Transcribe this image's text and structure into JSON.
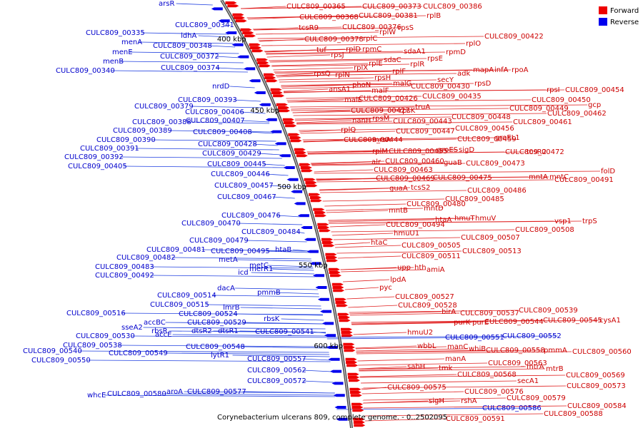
{
  "caption": "Corynebacterium ulcerans 809, complete genome. - 0..2502095",
  "legend": [
    {
      "label": "Forward",
      "color": "#ee0000"
    },
    {
      "label": "Reverse",
      "color": "#0000ee"
    }
  ],
  "backbone_ticks": [
    "400 kbp",
    "450 kbp",
    "500 kbp",
    "550 kbp",
    "600 kbp"
  ],
  "reverse_labels": [
    "arsR",
    "CULC809_00341",
    "CULC809_00335",
    "menA",
    "ldhA",
    "CULC809_00348",
    "menE",
    "menB",
    "CULC809_00340",
    "CULC809_00372",
    "CULC809_00374",
    "nrdD",
    "CULC809_00379",
    "CULC809_00393",
    "CULC809_00406",
    "CULC809_00388",
    "CULC809_00407",
    "CULC809_00389",
    "CULC809_00408",
    "CULC809_00390",
    "CULC809_00391",
    "CULC809_00428",
    "CULC809_00392",
    "CULC809_00429",
    "CULC809_00405",
    "CULC809_00445",
    "CULC809_00446",
    "CULC809_00457",
    "CULC809_00467",
    "CULC809_00476",
    "CULC809_00470",
    "CULC809_00484",
    "CULC809_00479",
    "CULC809_00481",
    "CULC809_00495",
    "htaB",
    "CULC809_00482",
    "metA",
    "CULC809_00483",
    "metC",
    "merR1",
    "icd",
    "CULC809_00492",
    "dacA",
    "pmmB",
    "CULC809_00514",
    "CULC809_00515",
    "lmrB",
    "CULC809_00516",
    "CULC809_00524",
    "accBC",
    "CULC809_00529",
    "rbsK",
    "sseA2",
    "rbsR",
    "dtsR2",
    "dtsR1",
    "CULC809_00541",
    "CULC809_00530",
    "accE",
    "CULC809_00538",
    "CULC809_00548",
    "CULC809_00540",
    "CULC809_00549",
    "lytR1",
    "CULC809_00550",
    "CULC809_00557",
    "CULC809_00562",
    "CULC809_00572",
    "whcE",
    "CULC809_00580",
    "aroA",
    "CULC809_00577",
    "CULC809_00551",
    "CULC809_00552",
    "CULC809_00586"
  ],
  "forward_labels": [
    "CULC809_00365",
    "CULC809_00373",
    "CULC809_00386",
    "CULC809_00368",
    "CULC809_00381",
    "rplB",
    "tcsR9",
    "CULC809_00376",
    "rpsS",
    "CULC809_00378",
    "rplC",
    "rplW",
    "CULC809_00422",
    "tuf",
    "rpsJ",
    "rplD",
    "rpmC",
    "rplO",
    "rpmD",
    "sdaA1",
    "rplX",
    "rplE",
    "sdaC",
    "rpsE",
    "rplR",
    "rplN",
    "rpsQ",
    "rpsH",
    "rplF",
    "secY",
    "adk",
    "mapA",
    "infA",
    "rpoA",
    "rpsD",
    "rpsI",
    "CULC809_00454",
    "ansA1",
    "phoN",
    "malF",
    "malG",
    "CULC809_00430",
    "malE",
    "CULC809_00426",
    "CULC809_00435",
    "CULC809_00450",
    "gcp",
    "CULC809_00427",
    "rpsK",
    "truA",
    "CULC809_00449",
    "CULC809_00462",
    "nanH",
    "rpsM",
    "CULC809_00443",
    "CULC809_00448",
    "CULC809_00461",
    "rplQ",
    "CULC809_00447",
    "CULC809_00456",
    "groEL1",
    "CULC809_00444",
    "mrsA",
    "CULC809_00459",
    "rplM",
    "CULC809_00455",
    "groES",
    "sigD",
    "CULC809_00472",
    "tcsR2",
    "alr",
    "CULC809_00460",
    "guaB",
    "CULC809_00473",
    "CULC809_00463",
    "folD",
    "CULC809_00469",
    "CULC809_00475",
    "mntA",
    "mntC",
    "CULC809_00491",
    "guaA",
    "tcsS2",
    "CULC809_00486",
    "CULC809_00485",
    "CULC809_00480",
    "mntD",
    "mntB",
    "vsp1",
    "trpS",
    "htaA",
    "hmuT",
    "hmuV",
    "CULC809_00494",
    "CULC809_00508",
    "hmuU1",
    "CULC809_00507",
    "htaC",
    "CULC809_00505",
    "CULC809_00513",
    "CULC809_00511",
    "upp",
    "hth",
    "amiA",
    "lpdA",
    "pyc",
    "CULC809_00527",
    "CULC809_00528",
    "birA",
    "CULC809_00537",
    "CULC809_00539",
    "purK",
    "purE",
    "CULC809_00544",
    "CULC809_00545",
    "cysA1",
    "hmuU2",
    "wbbL",
    "manC",
    "whiB",
    "CULC809_00558",
    "pmmA",
    "CULC809_00560",
    "manA",
    "sahH",
    "tmk",
    "CULC809_00563",
    "mtrA",
    "mtrB",
    "CULC809_00568",
    "CULC809_00569",
    "secA1",
    "CULC809_00573",
    "CULC809_00575",
    "CULC809_00576",
    "CULC809_00579",
    "sigH",
    "rshA",
    "CULC809_00584",
    "CULC809_00588",
    "CULC809_00591"
  ]
}
